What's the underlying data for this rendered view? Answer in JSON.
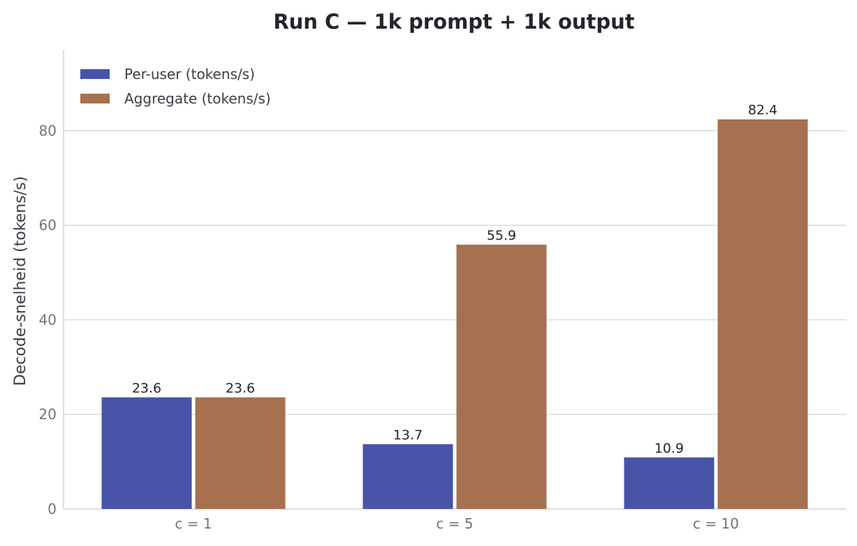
{
  "chart_data": {
    "type": "bar",
    "title": "Run C — 1k prompt + 1k output",
    "xlabel": "",
    "ylabel": "Decode-snelheid (tokens/s)",
    "categories": [
      "c = 1",
      "c = 5",
      "c = 10"
    ],
    "series": [
      {
        "name": "Per-user (tokens/s)",
        "color": "#4853a8",
        "values": [
          23.6,
          13.7,
          10.9
        ],
        "labels": [
          "23.6",
          "13.7",
          "10.9"
        ]
      },
      {
        "name": "Aggregate (tokens/s)",
        "color": "#a57150",
        "values": [
          23.6,
          55.9,
          82.4
        ],
        "labels": [
          "23.6",
          "55.9",
          "82.4"
        ]
      }
    ],
    "ylim": [
      0,
      97
    ],
    "yticks": [
      0,
      20,
      40,
      60,
      80
    ],
    "ytick_labels": [
      "0",
      "20",
      "40",
      "60",
      "80"
    ],
    "grid": true,
    "legend_position": "top-left"
  }
}
